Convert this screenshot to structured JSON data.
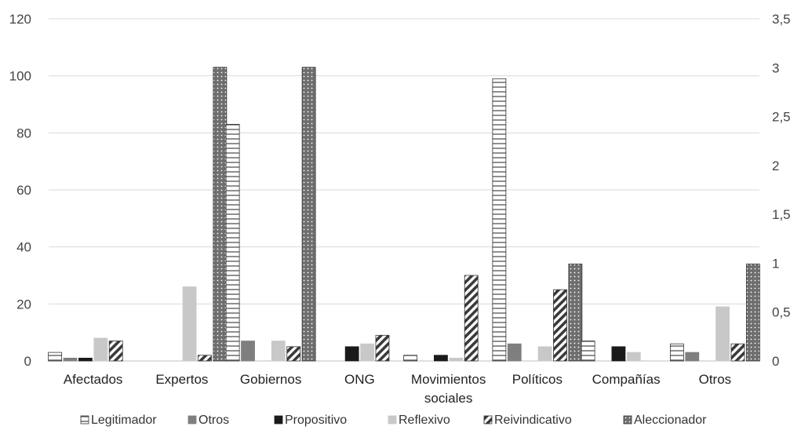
{
  "chart_data": {
    "type": "bar",
    "categories": [
      "Afectados",
      "Expertos",
      "Gobiernos",
      "ONG",
      "Movimientos sociales",
      "Políticos",
      "Compañías",
      "Otros"
    ],
    "category_lines": [
      [
        "Afectados"
      ],
      [
        "Expertos"
      ],
      [
        "Gobiernos"
      ],
      [
        "ONG"
      ],
      [
        "Movimientos",
        "sociales"
      ],
      [
        "Políticos"
      ],
      [
        "Compañías"
      ],
      [
        "Otros"
      ]
    ],
    "y_left": {
      "ylim": [
        0,
        120
      ],
      "ticks": [
        "0",
        "20",
        "40",
        "60",
        "80",
        "100",
        "120"
      ]
    },
    "y_right": {
      "ylim": [
        0,
        3.5
      ],
      "ticks": [
        "0",
        "0,5",
        "1",
        "1,5",
        "2",
        "2,5",
        "3",
        "3,5"
      ]
    },
    "series": [
      {
        "name": "Legitimador",
        "pattern": "horizontal-stripes",
        "color": "#555555",
        "values": [
          3,
          0,
          83,
          0,
          2,
          99,
          7,
          6
        ]
      },
      {
        "name": "Otros",
        "pattern": "solid",
        "color": "#7f7f7f",
        "values": [
          1,
          0,
          7,
          0,
          0,
          6,
          0,
          3
        ]
      },
      {
        "name": "Propositivo",
        "pattern": "solid",
        "color": "#1a1a1a",
        "values": [
          1,
          0,
          0,
          5,
          2,
          0,
          5,
          0
        ]
      },
      {
        "name": "Reflexivo",
        "pattern": "solid",
        "color": "#c8c8c8",
        "values": [
          8,
          26,
          7,
          6,
          1,
          5,
          3,
          19
        ]
      },
      {
        "name": "Reivindicativo",
        "pattern": "diagonal-stripes",
        "color": "#444444",
        "values": [
          7,
          2,
          5,
          9,
          30,
          25,
          0,
          6
        ]
      },
      {
        "name": "Aleccionador",
        "pattern": "dotted",
        "color": "#6e6e6e",
        "values": [
          0,
          103,
          103,
          0,
          0,
          34,
          0,
          34
        ]
      }
    ],
    "legend_position": "bottom",
    "grid": true
  }
}
